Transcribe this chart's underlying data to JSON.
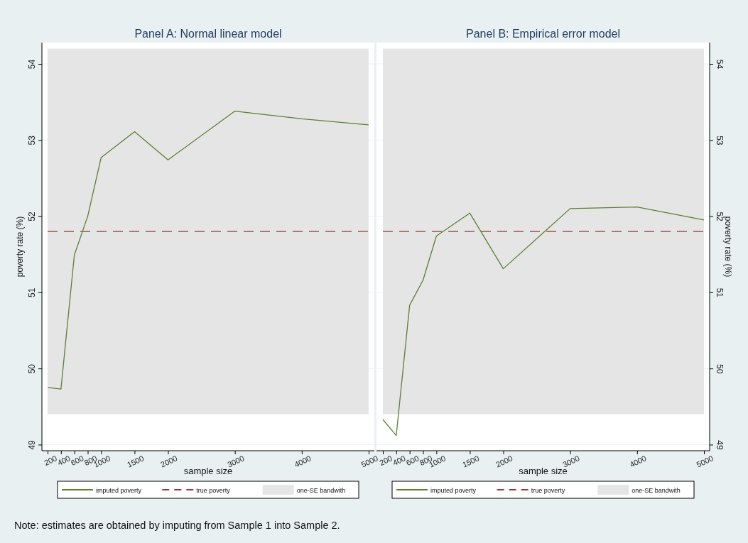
{
  "chart_data": [
    {
      "type": "line",
      "title": "Panel A: Normal linear model",
      "xlabel": "sample size",
      "ylabel": "poverty rate (%)",
      "x": [
        200,
        400,
        600,
        800,
        1000,
        1500,
        2000,
        3000,
        4000,
        5000
      ],
      "series": [
        {
          "name": "imputed poverty",
          "color": "#5d7f33",
          "values": [
            49.75,
            49.73,
            51.49,
            52.0,
            52.77,
            53.11,
            52.74,
            53.38,
            53.28,
            53.2
          ]
        }
      ],
      "xlim": [
        200,
        5000
      ],
      "xticks": [
        200,
        400,
        600,
        800,
        1000,
        1500,
        2000,
        3000,
        4000,
        5000
      ],
      "ylim": [
        48.92,
        54.28
      ],
      "yticks": [
        49,
        50,
        51,
        52,
        53,
        54
      ],
      "ref_lines": [
        {
          "axis": "y",
          "value": 51.8,
          "label": "true poverty",
          "color": "#9b3a3a",
          "line_style": "dashed"
        }
      ],
      "bands": [
        {
          "axis": "y",
          "from": 49.4,
          "to": 54.2,
          "label": "one-SE bandwith",
          "color": "#e5e5e5"
        }
      ],
      "grid": "y",
      "legend": "bottom",
      "line_style": "solid",
      "marker": "none",
      "annotations": [
        "Note: estimates are obtained by imputing from Sample 1 into Sample 2."
      ]
    },
    {
      "type": "line",
      "title": "Panel B: Empirical error model",
      "xlabel": "sample size",
      "y2label": "poverty rate (%)",
      "x": [
        200,
        400,
        600,
        800,
        1000,
        1500,
        2000,
        3000,
        4000,
        5000
      ],
      "series": [
        {
          "name": "imputed poverty",
          "color": "#5d7f33",
          "axis": "y2",
          "values": [
            49.33,
            49.12,
            50.83,
            51.16,
            51.74,
            52.04,
            51.31,
            52.1,
            52.12,
            51.95
          ]
        }
      ],
      "xlim": [
        200,
        5000
      ],
      "xticks": [
        200,
        400,
        600,
        800,
        1000,
        1500,
        2000,
        3000,
        4000,
        5000
      ],
      "y2lim": [
        48.92,
        54.28
      ],
      "y2ticks": [
        49,
        50,
        51,
        52,
        53,
        54
      ],
      "ref_lines": [
        {
          "axis": "y2",
          "value": 51.8,
          "label": "true poverty",
          "color": "#9b3a3a",
          "line_style": "dashed"
        }
      ],
      "bands": [
        {
          "axis": "y2",
          "from": 49.4,
          "to": 54.2,
          "label": "one-SE bandwith",
          "color": "#e5e5e5"
        }
      ],
      "grid": "y",
      "legend": "bottom",
      "line_style": "solid",
      "marker": "none"
    }
  ]
}
